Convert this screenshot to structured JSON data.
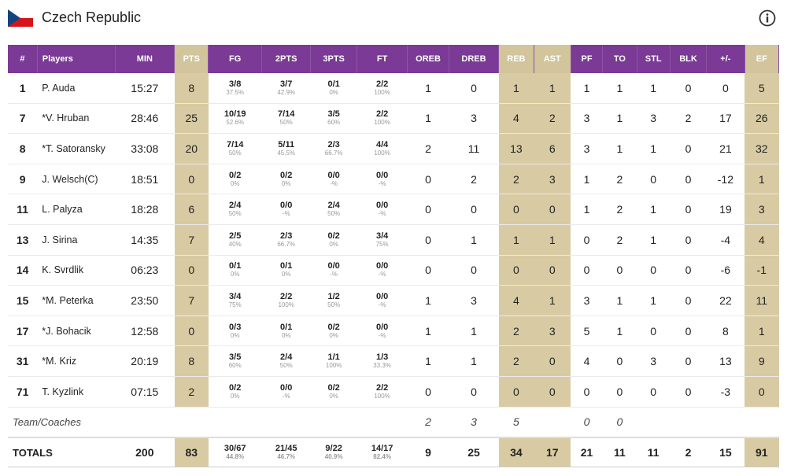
{
  "team": {
    "name": "Czech Republic",
    "flag": "flag-icon",
    "info": "info-icon"
  },
  "colors": {
    "header": "#7a3a96",
    "highlight": "#d8cba3"
  },
  "columns": [
    "#",
    "Players",
    "MIN",
    "PTS",
    "FG",
    "2PTS",
    "3PTS",
    "FT",
    "OREB",
    "DREB",
    "REB",
    "AST",
    "PF",
    "TO",
    "STL",
    "BLK",
    "+/-",
    "EF"
  ],
  "players": [
    {
      "num": "1",
      "name": "P. Auda",
      "min": "15:27",
      "pts": "8",
      "fg": "3/8",
      "fg_pct": "37.5%",
      "p2": "3/7",
      "p2_pct": "42.9%",
      "p3": "0/1",
      "p3_pct": "0%",
      "ft": "2/2",
      "ft_pct": "100%",
      "oreb": "1",
      "dreb": "0",
      "reb": "1",
      "ast": "1",
      "pf": "1",
      "to": "1",
      "stl": "1",
      "blk": "0",
      "pm": "0",
      "ef": "5"
    },
    {
      "num": "7",
      "name": "*V. Hruban",
      "min": "28:46",
      "pts": "25",
      "fg": "10/19",
      "fg_pct": "52.6%",
      "p2": "7/14",
      "p2_pct": "50%",
      "p3": "3/5",
      "p3_pct": "60%",
      "ft": "2/2",
      "ft_pct": "100%",
      "oreb": "1",
      "dreb": "3",
      "reb": "4",
      "ast": "2",
      "pf": "3",
      "to": "1",
      "stl": "3",
      "blk": "2",
      "pm": "17",
      "ef": "26"
    },
    {
      "num": "8",
      "name": "*T. Satoransky",
      "min": "33:08",
      "pts": "20",
      "fg": "7/14",
      "fg_pct": "50%",
      "p2": "5/11",
      "p2_pct": "45.5%",
      "p3": "2/3",
      "p3_pct": "66.7%",
      "ft": "4/4",
      "ft_pct": "100%",
      "oreb": "2",
      "dreb": "11",
      "reb": "13",
      "ast": "6",
      "pf": "3",
      "to": "1",
      "stl": "1",
      "blk": "0",
      "pm": "21",
      "ef": "32"
    },
    {
      "num": "9",
      "name": "J. Welsch(C)",
      "min": "18:51",
      "pts": "0",
      "fg": "0/2",
      "fg_pct": "0%",
      "p2": "0/2",
      "p2_pct": "0%",
      "p3": "0/0",
      "p3_pct": "-%",
      "ft": "0/0",
      "ft_pct": "-%",
      "oreb": "0",
      "dreb": "2",
      "reb": "2",
      "ast": "3",
      "pf": "1",
      "to": "2",
      "stl": "0",
      "blk": "0",
      "pm": "-12",
      "ef": "1"
    },
    {
      "num": "11",
      "name": "L. Palyza",
      "min": "18:28",
      "pts": "6",
      "fg": "2/4",
      "fg_pct": "50%",
      "p2": "0/0",
      "p2_pct": "-%",
      "p3": "2/4",
      "p3_pct": "50%",
      "ft": "0/0",
      "ft_pct": "-%",
      "oreb": "0",
      "dreb": "0",
      "reb": "0",
      "ast": "0",
      "pf": "1",
      "to": "2",
      "stl": "1",
      "blk": "0",
      "pm": "19",
      "ef": "3"
    },
    {
      "num": "13",
      "name": "J. Sirina",
      "min": "14:35",
      "pts": "7",
      "fg": "2/5",
      "fg_pct": "40%",
      "p2": "2/3",
      "p2_pct": "66.7%",
      "p3": "0/2",
      "p3_pct": "0%",
      "ft": "3/4",
      "ft_pct": "75%",
      "oreb": "0",
      "dreb": "1",
      "reb": "1",
      "ast": "1",
      "pf": "0",
      "to": "2",
      "stl": "1",
      "blk": "0",
      "pm": "-4",
      "ef": "4"
    },
    {
      "num": "14",
      "name": "K. Svrdlik",
      "min": "06:23",
      "pts": "0",
      "fg": "0/1",
      "fg_pct": "0%",
      "p2": "0/1",
      "p2_pct": "0%",
      "p3": "0/0",
      "p3_pct": "-%",
      "ft": "0/0",
      "ft_pct": "-%",
      "oreb": "0",
      "dreb": "0",
      "reb": "0",
      "ast": "0",
      "pf": "0",
      "to": "0",
      "stl": "0",
      "blk": "0",
      "pm": "-6",
      "ef": "-1"
    },
    {
      "num": "15",
      "name": "*M. Peterka",
      "min": "23:50",
      "pts": "7",
      "fg": "3/4",
      "fg_pct": "75%",
      "p2": "2/2",
      "p2_pct": "100%",
      "p3": "1/2",
      "p3_pct": "50%",
      "ft": "0/0",
      "ft_pct": "-%",
      "oreb": "1",
      "dreb": "3",
      "reb": "4",
      "ast": "1",
      "pf": "3",
      "to": "1",
      "stl": "1",
      "blk": "0",
      "pm": "22",
      "ef": "11"
    },
    {
      "num": "17",
      "name": "*J. Bohacik",
      "min": "12:58",
      "pts": "0",
      "fg": "0/3",
      "fg_pct": "0%",
      "p2": "0/1",
      "p2_pct": "0%",
      "p3": "0/2",
      "p3_pct": "0%",
      "ft": "0/0",
      "ft_pct": "-%",
      "oreb": "1",
      "dreb": "1",
      "reb": "2",
      "ast": "3",
      "pf": "5",
      "to": "1",
      "stl": "0",
      "blk": "0",
      "pm": "8",
      "ef": "1"
    },
    {
      "num": "31",
      "name": "*M. Kriz",
      "min": "20:19",
      "pts": "8",
      "fg": "3/5",
      "fg_pct": "60%",
      "p2": "2/4",
      "p2_pct": "50%",
      "p3": "1/1",
      "p3_pct": "100%",
      "ft": "1/3",
      "ft_pct": "33.3%",
      "oreb": "1",
      "dreb": "1",
      "reb": "2",
      "ast": "0",
      "pf": "4",
      "to": "0",
      "stl": "3",
      "blk": "0",
      "pm": "13",
      "ef": "9"
    },
    {
      "num": "71",
      "name": "T. Kyzlink",
      "min": "07:15",
      "pts": "2",
      "fg": "0/2",
      "fg_pct": "0%",
      "p2": "0/0",
      "p2_pct": "-%",
      "p3": "0/2",
      "p3_pct": "0%",
      "ft": "2/2",
      "ft_pct": "100%",
      "oreb": "0",
      "dreb": "0",
      "reb": "0",
      "ast": "0",
      "pf": "0",
      "to": "0",
      "stl": "0",
      "blk": "0",
      "pm": "-3",
      "ef": "0"
    }
  ],
  "team_row": {
    "label": "Team/Coaches",
    "oreb": "2",
    "dreb": "3",
    "reb": "5",
    "pf": "0",
    "to": "0"
  },
  "totals": {
    "label": "TOTALS",
    "min": "200",
    "pts": "83",
    "fg": "30/67",
    "fg_pct": "44.8%",
    "p2": "21/45",
    "p2_pct": "46.7%",
    "p3": "9/22",
    "p3_pct": "40.9%",
    "ft": "14/17",
    "ft_pct": "82.4%",
    "oreb": "9",
    "dreb": "25",
    "reb": "34",
    "ast": "17",
    "pf": "21",
    "to": "11",
    "stl": "11",
    "blk": "2",
    "pm": "15",
    "ef": "91"
  }
}
